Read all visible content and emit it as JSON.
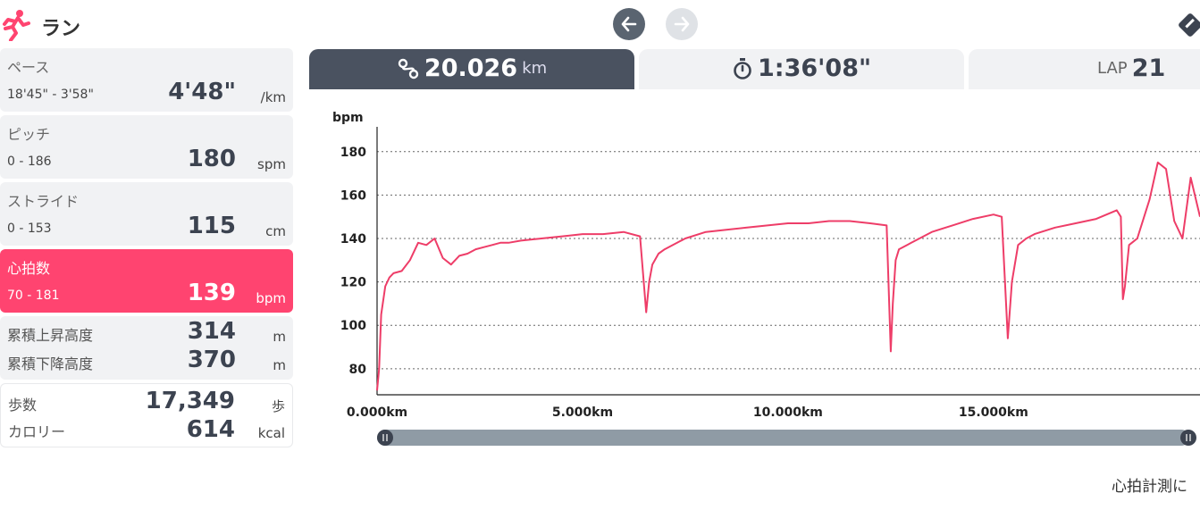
{
  "app": {
    "title": "ラン"
  },
  "colors": {
    "accent": "#ff4470",
    "tab_active": "#4a5260",
    "line": "#ee3d68",
    "slider": "#8f9ba5"
  },
  "sidebar": {
    "pace": {
      "label": "ペース",
      "range": "18'45\" - 3'58\"",
      "value": "4'48\"",
      "unit": "/km"
    },
    "pitch": {
      "label": "ピッチ",
      "range": "0 - 186",
      "value": "180",
      "unit": "spm"
    },
    "stride": {
      "label": "ストライド",
      "range": "0 - 153",
      "value": "115",
      "unit": "cm"
    },
    "heart": {
      "label": "心拍数",
      "range": "70 - 181",
      "value": "139",
      "unit": "bpm"
    },
    "elevation": {
      "up_label": "累積上昇高度",
      "up_value": "314",
      "up_unit": "m",
      "down_label": "累積下降高度",
      "down_value": "370",
      "down_unit": "m"
    },
    "steps": {
      "steps_label": "歩数",
      "steps_value": "17,349",
      "steps_unit": "歩",
      "cal_label": "カロリー",
      "cal_value": "614",
      "cal_unit": "kcal"
    }
  },
  "tabs": {
    "distance": {
      "value": "20.026",
      "unit": "km"
    },
    "time": {
      "value": "1:36'08\""
    },
    "lap": {
      "label": "LAP",
      "value": "21"
    }
  },
  "icons": {
    "runner": "runner-icon",
    "prev": "arrow-left-icon",
    "next": "arrow-right-icon",
    "settings": "settings-icon",
    "route": "route-icon",
    "stopwatch": "stopwatch-icon"
  },
  "slider": {
    "start": 0,
    "end": 1
  },
  "footer": {
    "note": "心拍計測に"
  },
  "chart_data": {
    "type": "line",
    "ylabel": "bpm",
    "ylim": [
      68,
      198
    ],
    "yticks": [
      80,
      100,
      120,
      140,
      160,
      180
    ],
    "xlim": [
      0,
      20.026
    ],
    "xticks": [
      0,
      5,
      10,
      15
    ],
    "xtick_labels": [
      "0.000km",
      "5.000km",
      "10.000km",
      "15.000km"
    ],
    "grid": true,
    "series": [
      {
        "x": [
          0,
          0.05,
          0.1,
          0.2,
          0.3,
          0.4,
          0.6,
          0.8,
          1.0,
          1.2,
          1.4,
          1.6,
          1.8,
          2.0,
          2.2,
          2.4,
          2.6,
          2.8,
          3.0,
          3.2,
          3.5,
          4.0,
          4.5,
          5.0,
          5.5,
          6.0,
          6.4,
          6.55,
          6.62,
          6.7,
          6.85,
          7.0,
          7.5,
          8.0,
          8.5,
          9.0,
          9.5,
          10.0,
          10.5,
          11.0,
          11.5,
          12.0,
          12.4,
          12.5,
          12.55,
          12.62,
          12.7,
          13.0,
          13.5,
          14.0,
          14.5,
          15.0,
          15.2,
          15.35,
          15.45,
          15.6,
          15.8,
          16.0,
          16.5,
          17.0,
          17.5,
          18.0,
          18.1,
          18.15,
          18.2,
          18.3,
          18.5,
          18.8,
          19.0,
          19.2,
          19.4,
          19.6,
          19.8,
          20.026
        ],
        "y": [
          70,
          80,
          105,
          118,
          122,
          124,
          125,
          130,
          138,
          137,
          140,
          131,
          128,
          132,
          133,
          135,
          136,
          137,
          138,
          138,
          139,
          140,
          141,
          142,
          142,
          143,
          141,
          106,
          120,
          128,
          133,
          135,
          140,
          143,
          144,
          145,
          146,
          147,
          147,
          148,
          148,
          147,
          146,
          88,
          110,
          130,
          135,
          138,
          143,
          146,
          149,
          151,
          150,
          94,
          120,
          137,
          140,
          142,
          145,
          147,
          149,
          153,
          150,
          112,
          118,
          137,
          140,
          158,
          175,
          172,
          148,
          140,
          168,
          150
        ]
      }
    ]
  }
}
